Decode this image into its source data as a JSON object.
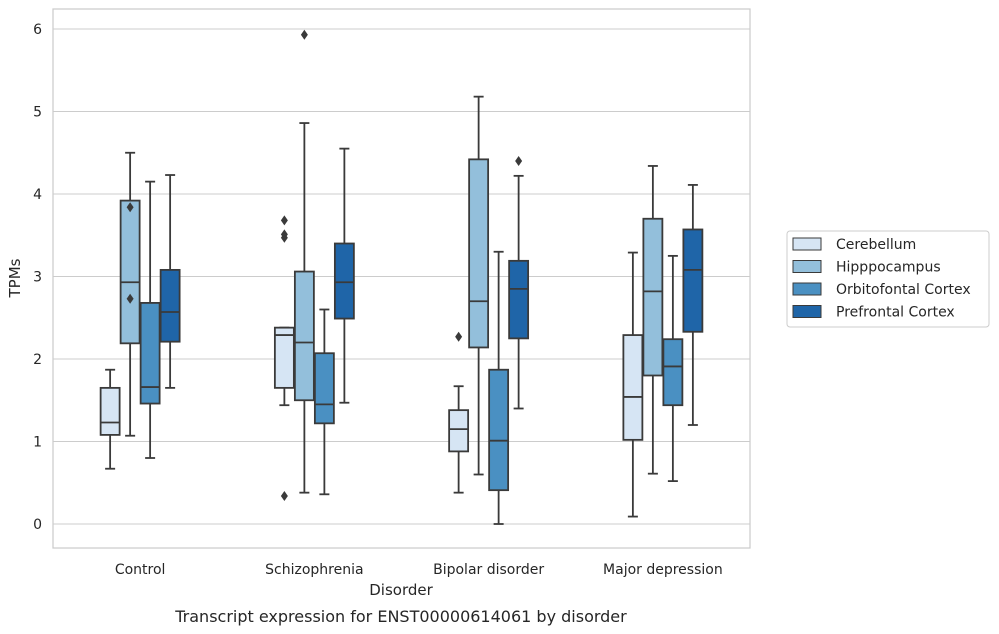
{
  "caption": "Transcript expression for ENST00000614061 by disorder",
  "chart_data": {
    "type": "boxplot",
    "xlabel": "Disorder",
    "ylabel": "TPMs",
    "ylim": [
      -0.3,
      6.25
    ],
    "yticks": [
      0,
      1,
      2,
      3,
      4,
      5,
      6
    ],
    "grid": "horizontal",
    "legend_position": "right",
    "categories": [
      "Control",
      "Schizophrenia",
      "Bipolar disorder",
      "Major depression"
    ],
    "series": [
      {
        "name": "Cerebellum",
        "color": "#d6e5f4",
        "boxes": [
          {
            "whislo": 0.67,
            "q1": 1.08,
            "med": 1.23,
            "q3": 1.65,
            "whishi": 1.87,
            "fliers": []
          },
          {
            "whislo": 1.44,
            "q1": 1.65,
            "med": 2.29,
            "q3": 2.38,
            "whishi": 2.38,
            "fliers": [
              0.34,
              3.47,
              3.51,
              3.68
            ]
          },
          {
            "whislo": 0.38,
            "q1": 0.88,
            "med": 1.15,
            "q3": 1.38,
            "whishi": 1.67,
            "fliers": [
              2.27
            ]
          },
          {
            "whislo": 0.09,
            "q1": 1.02,
            "med": 1.54,
            "q3": 2.29,
            "whishi": 3.29,
            "fliers": []
          }
        ]
      },
      {
        "name": "Hipppocampus",
        "color": "#93bfdb",
        "boxes": [
          {
            "whislo": 1.07,
            "q1": 2.19,
            "med": 2.93,
            "q3": 3.92,
            "whishi": 4.5,
            "fliers": [
              2.73,
              3.84
            ]
          },
          {
            "whislo": 0.38,
            "q1": 1.5,
            "med": 2.2,
            "q3": 3.06,
            "whishi": 4.86,
            "fliers": [
              5.93
            ]
          },
          {
            "whislo": 0.6,
            "q1": 2.14,
            "med": 2.7,
            "q3": 4.42,
            "whishi": 5.18,
            "fliers": []
          },
          {
            "whislo": 0.61,
            "q1": 1.8,
            "med": 2.82,
            "q3": 3.7,
            "whishi": 4.34,
            "fliers": []
          }
        ]
      },
      {
        "name": "Orbitofontal Cortex",
        "color": "#4a90c2",
        "boxes": [
          {
            "whislo": 0.8,
            "q1": 1.46,
            "med": 1.66,
            "q3": 2.68,
            "whishi": 4.15,
            "fliers": []
          },
          {
            "whislo": 0.36,
            "q1": 1.22,
            "med": 1.45,
            "q3": 2.07,
            "whishi": 2.6,
            "fliers": []
          },
          {
            "whislo": 0.0,
            "q1": 0.41,
            "med": 1.01,
            "q3": 1.87,
            "whishi": 3.3,
            "fliers": []
          },
          {
            "whislo": 0.52,
            "q1": 1.44,
            "med": 1.91,
            "q3": 2.24,
            "whishi": 3.25,
            "fliers": []
          }
        ]
      },
      {
        "name": "Prefrontal Cortex",
        "color": "#1f65a8",
        "boxes": [
          {
            "whislo": 1.65,
            "q1": 2.21,
            "med": 2.57,
            "q3": 3.08,
            "whishi": 4.23,
            "fliers": []
          },
          {
            "whislo": 1.47,
            "q1": 2.49,
            "med": 2.93,
            "q3": 3.4,
            "whishi": 4.55,
            "fliers": []
          },
          {
            "whislo": 1.4,
            "q1": 2.25,
            "med": 2.85,
            "q3": 3.19,
            "whishi": 4.22,
            "fliers": [
              4.4
            ]
          },
          {
            "whislo": 1.2,
            "q1": 2.33,
            "med": 3.08,
            "q3": 3.57,
            "whishi": 4.11,
            "fliers": []
          }
        ]
      }
    ]
  }
}
